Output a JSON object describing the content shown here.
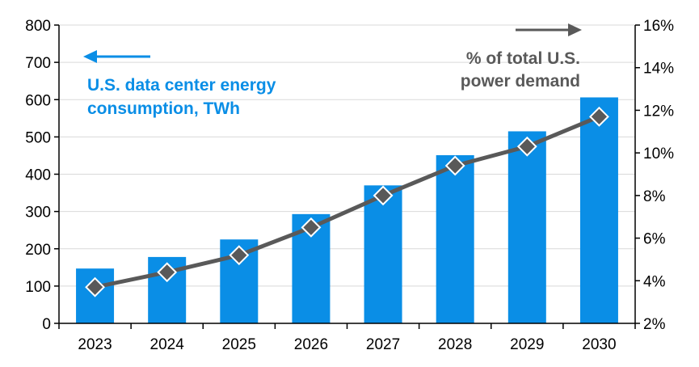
{
  "chart_data": {
    "type": "bar",
    "title": "",
    "categories": [
      "2023",
      "2024",
      "2025",
      "2026",
      "2027",
      "2028",
      "2029",
      "2030"
    ],
    "series": [
      {
        "name": "U.S. data center energy consumption, TWh",
        "type": "bar",
        "axis": "left",
        "values": [
          147,
          178,
          225,
          293,
          370,
          451,
          515,
          606
        ]
      },
      {
        "name": "% of total U.S. power demand",
        "type": "line",
        "axis": "right",
        "values": [
          3.7,
          4.4,
          5.2,
          6.5,
          8.0,
          9.4,
          10.3,
          11.7
        ]
      }
    ],
    "y_left": {
      "min": 0,
      "max": 800,
      "ticks": [
        0,
        100,
        200,
        300,
        400,
        500,
        600,
        700,
        800
      ]
    },
    "y_right": {
      "min": 2,
      "max": 16,
      "ticks": [
        "2%",
        "4%",
        "6%",
        "8%",
        "10%",
        "12%",
        "14%",
        "16%"
      ],
      "tick_values": [
        2,
        4,
        6,
        8,
        10,
        12,
        14,
        16
      ]
    },
    "annotations": {
      "bar_label_lines": [
        "U.S. data center energy",
        "consumption, TWh"
      ],
      "line_label_lines": [
        "% of total U.S.",
        "power demand"
      ]
    },
    "colors": {
      "bar": "#0a8ee6",
      "line": "#595959",
      "marker_fill": "#595959",
      "marker_stroke": "#ffffff",
      "grid": "#d9d9d9"
    }
  }
}
